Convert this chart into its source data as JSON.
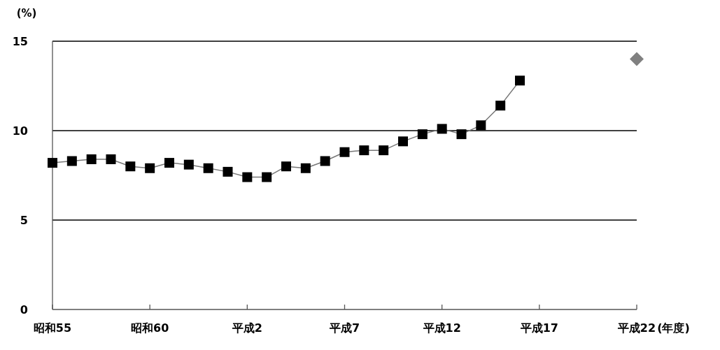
{
  "chart_data": {
    "type": "line",
    "ylabel": "(%)",
    "xlabel": "(年度)",
    "categories": [
      "昭和55",
      null,
      null,
      null,
      null,
      "昭和60",
      null,
      null,
      null,
      null,
      "平成2",
      null,
      null,
      null,
      null,
      "平成7",
      null,
      null,
      null,
      null,
      "平成12",
      null,
      null,
      null,
      null,
      "平成17",
      null,
      null,
      null,
      null,
      "平成22"
    ],
    "ylim": [
      0,
      15
    ],
    "yticks": [
      0,
      5,
      10,
      15
    ],
    "grid": "y",
    "series": [
      {
        "type": "line",
        "color": "#000000",
        "marker": "square",
        "line_style": "solid",
        "values": [
          8.2,
          8.3,
          8.4,
          8.4,
          8.0,
          7.9,
          8.2,
          8.1,
          7.9,
          7.7,
          7.4,
          7.4,
          8.0,
          7.9,
          8.3,
          8.8,
          8.9,
          8.9,
          9.4,
          9.8,
          10.1,
          9.8,
          10.3,
          11.4,
          12.8,
          null,
          null,
          null,
          null,
          null,
          null
        ]
      },
      {
        "type": "scatter",
        "color": "#808080",
        "marker": "diamond",
        "values": [
          null,
          null,
          null,
          null,
          null,
          null,
          null,
          null,
          null,
          null,
          null,
          null,
          null,
          null,
          null,
          null,
          null,
          null,
          null,
          null,
          null,
          null,
          null,
          null,
          null,
          null,
          null,
          null,
          null,
          null,
          14
        ]
      }
    ]
  }
}
